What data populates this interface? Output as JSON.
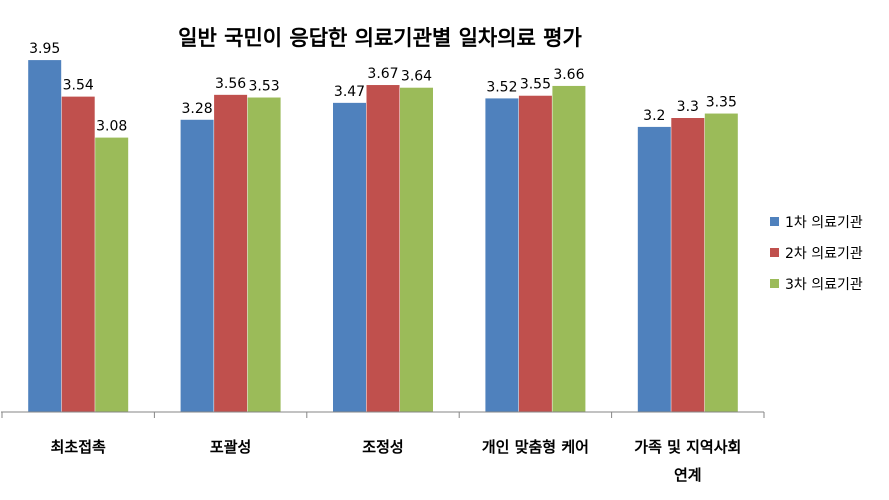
{
  "chart_data": {
    "type": "bar",
    "title": "일반 국민이 응답한 의료기관별 일차의료 평가",
    "categories": [
      "최초접촉",
      "포괄성",
      "조정성",
      "개인 맞춤형 케어",
      "가족 및 지역사회 연계"
    ],
    "category_lines": [
      [
        "최초접촉"
      ],
      [
        "포괄성"
      ],
      [
        "조정성"
      ],
      [
        "개인 맞춤형 케어"
      ],
      [
        "가족 및 지역사회",
        "연계"
      ]
    ],
    "series": [
      {
        "name": "1차 의료기관",
        "color": "#4f81bd",
        "values": [
          3.95,
          3.28,
          3.47,
          3.52,
          3.2
        ],
        "labels": [
          "3.95",
          "3.28",
          "3.47",
          "3.52",
          "3.2"
        ]
      },
      {
        "name": "2차 의료기관",
        "color": "#c0504d",
        "values": [
          3.54,
          3.56,
          3.67,
          3.55,
          3.3
        ],
        "labels": [
          "3.54",
          "3.56",
          "3.67",
          "3.55",
          "3.3"
        ]
      },
      {
        "name": "3차 의료기관",
        "color": "#9bbb59",
        "values": [
          3.08,
          3.53,
          3.64,
          3.66,
          3.35
        ],
        "labels": [
          "3.08",
          "3.53",
          "3.64",
          "3.66",
          "3.35"
        ]
      }
    ],
    "ylim": [
      0,
      4.4
    ],
    "y_axis_visible": false,
    "grid": false,
    "legend_position": "right",
    "data_labels": true
  }
}
